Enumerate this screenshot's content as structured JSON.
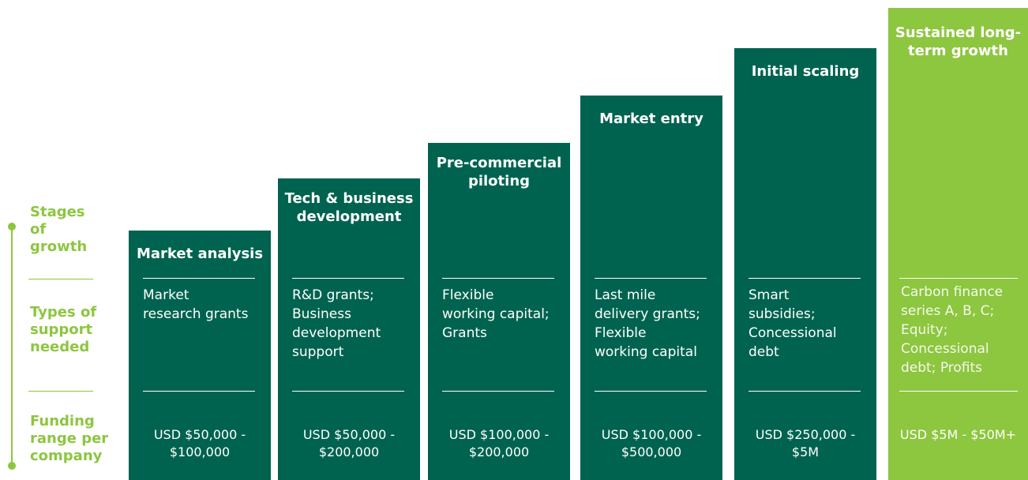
{
  "row_labels": [
    [
      "Stages",
      "of",
      "growth"
    ],
    [
      "Types of",
      "support",
      "needed"
    ],
    [
      "Funding",
      "range per",
      "company"
    ]
  ],
  "stages": [
    {
      "title": [
        "Market analysis"
      ],
      "support": [
        "Market",
        "research grants"
      ],
      "funding": [
        "USD $50,000 -",
        "$100,000"
      ]
    },
    {
      "title": [
        "Tech & business",
        "development"
      ],
      "support": [
        "R&D grants;",
        "Business",
        "development",
        "support"
      ],
      "funding": [
        "USD $50,000 -",
        "$200,000"
      ]
    },
    {
      "title": [
        "Pre-commercial",
        "piloting"
      ],
      "support": [
        "Flexible",
        "working capital;",
        "Grants"
      ],
      "funding": [
        "USD $100,000 -",
        "$200,000"
      ]
    },
    {
      "title": [
        "Market entry"
      ],
      "support": [
        "Last mile",
        "delivery grants;",
        "Flexible",
        "working capital"
      ],
      "funding": [
        "USD $100,000 -",
        "$500,000"
      ]
    },
    {
      "title": [
        "Initial scaling"
      ],
      "support": [
        "Smart",
        "subsidies;",
        "Concessional",
        "debt"
      ],
      "funding": [
        "USD $250,000 -",
        "$5M"
      ]
    },
    {
      "title": [
        "Sustained long-",
        "term growth"
      ],
      "support": [
        "Carbon finance",
        "series A, B, C;",
        "Equity;",
        "Concessional",
        "debt; Profits"
      ],
      "funding": [
        "USD $5M - $50M+"
      ]
    }
  ]
}
